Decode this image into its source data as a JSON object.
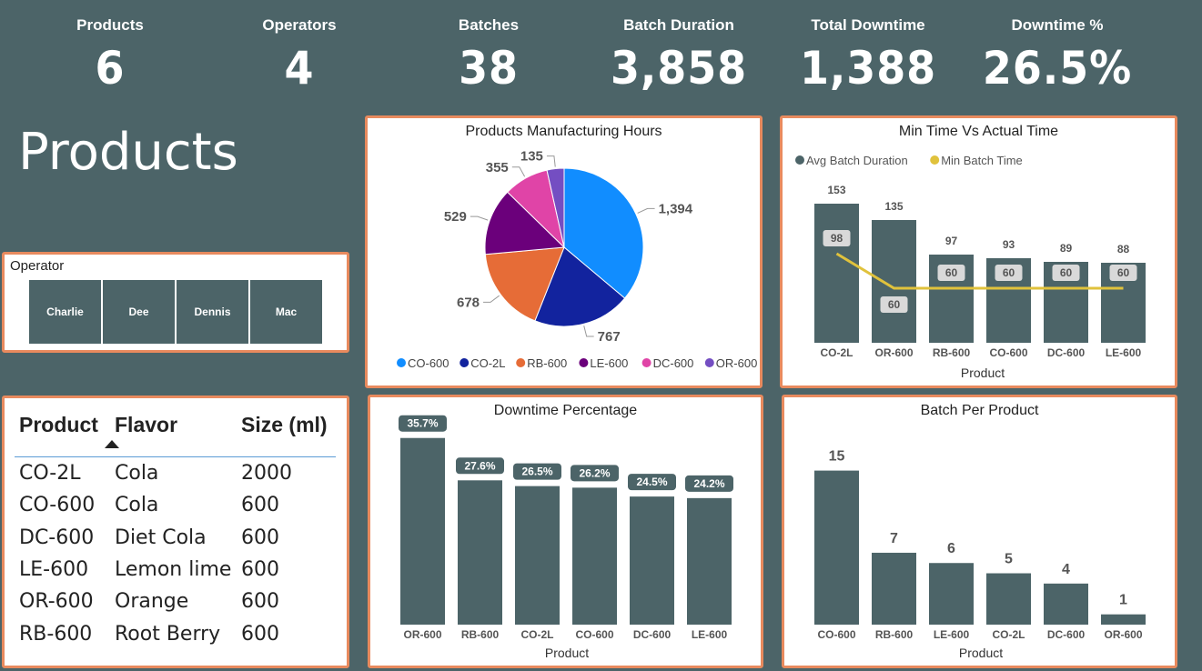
{
  "kpis": [
    {
      "label": "Products",
      "value": "6"
    },
    {
      "label": "Operators",
      "value": "4"
    },
    {
      "label": "Batches",
      "value": "38"
    },
    {
      "label": "Batch Duration",
      "value": "3,858"
    },
    {
      "label": "Total Downtime",
      "value": "1,388"
    },
    {
      "label": "Downtime %",
      "value": "26.5%"
    }
  ],
  "page_title": "Products",
  "operator_slicer": {
    "title": "Operator",
    "options": [
      "Charlie",
      "Dee",
      "Dennis",
      "Mac"
    ]
  },
  "product_table": {
    "headers": [
      "Product",
      "Flavor",
      "Size (ml)"
    ],
    "rows": [
      [
        "CO-2L",
        "Cola",
        "2000"
      ],
      [
        "CO-600",
        "Cola",
        "600"
      ],
      [
        "DC-600",
        "Diet Cola",
        "600"
      ],
      [
        "LE-600",
        "Lemon lime",
        "600"
      ],
      [
        "OR-600",
        "Orange",
        "600"
      ],
      [
        "RB-600",
        "Root Berry",
        "600"
      ]
    ]
  },
  "colors": {
    "background": "#4c6468",
    "bar": "#4c6468",
    "panel_border": "#e88a5e",
    "min_line": "#e0c23c"
  },
  "chart_data": [
    {
      "id": "pie",
      "type": "pie",
      "title": "Products Manufacturing Hours",
      "legend_position": "bottom",
      "slices": [
        {
          "name": "CO-600",
          "value": 1394,
          "color": "#118dff"
        },
        {
          "name": "CO-2L",
          "value": 767,
          "color": "#12239e"
        },
        {
          "name": "RB-600",
          "value": 678,
          "color": "#e66c37"
        },
        {
          "name": "LE-600",
          "value": 529,
          "color": "#6b007b"
        },
        {
          "name": "DC-600",
          "value": 355,
          "color": "#e044a7"
        },
        {
          "name": "OR-600",
          "value": 135,
          "color": "#744ec2"
        }
      ]
    },
    {
      "id": "combo",
      "type": "bar",
      "title": "Min Time Vs Actual Time",
      "xlabel": "Product",
      "legend_position": "top-left",
      "categories": [
        "CO-2L",
        "OR-600",
        "RB-600",
        "CO-600",
        "DC-600",
        "LE-600"
      ],
      "series": [
        {
          "name": "Avg Batch Duration",
          "type": "bar",
          "values": [
            153,
            135,
            97,
            93,
            89,
            88
          ],
          "color": "#4c6468"
        },
        {
          "name": "Min Batch Time",
          "type": "line",
          "values": [
            98,
            60,
            60,
            60,
            60,
            60
          ],
          "color": "#e0c23c"
        }
      ],
      "ylim": [
        0,
        160
      ]
    },
    {
      "id": "downtime",
      "type": "bar",
      "title": "Downtime Percentage",
      "xlabel": "Product",
      "categories": [
        "OR-600",
        "RB-600",
        "CO-2L",
        "CO-600",
        "DC-600",
        "LE-600"
      ],
      "values": [
        35.7,
        27.6,
        26.5,
        26.2,
        24.5,
        24.2
      ],
      "labels": [
        "35.7%",
        "27.6%",
        "26.5%",
        "26.2%",
        "24.5%",
        "24.2%"
      ],
      "ylim": [
        0,
        40
      ]
    },
    {
      "id": "batches",
      "type": "bar",
      "title": "Batch Per Product",
      "xlabel": "Product",
      "categories": [
        "CO-600",
        "RB-600",
        "LE-600",
        "CO-2L",
        "DC-600",
        "OR-600"
      ],
      "values": [
        15,
        7,
        6,
        5,
        4,
        1
      ],
      "ylim": [
        0,
        17
      ]
    }
  ]
}
